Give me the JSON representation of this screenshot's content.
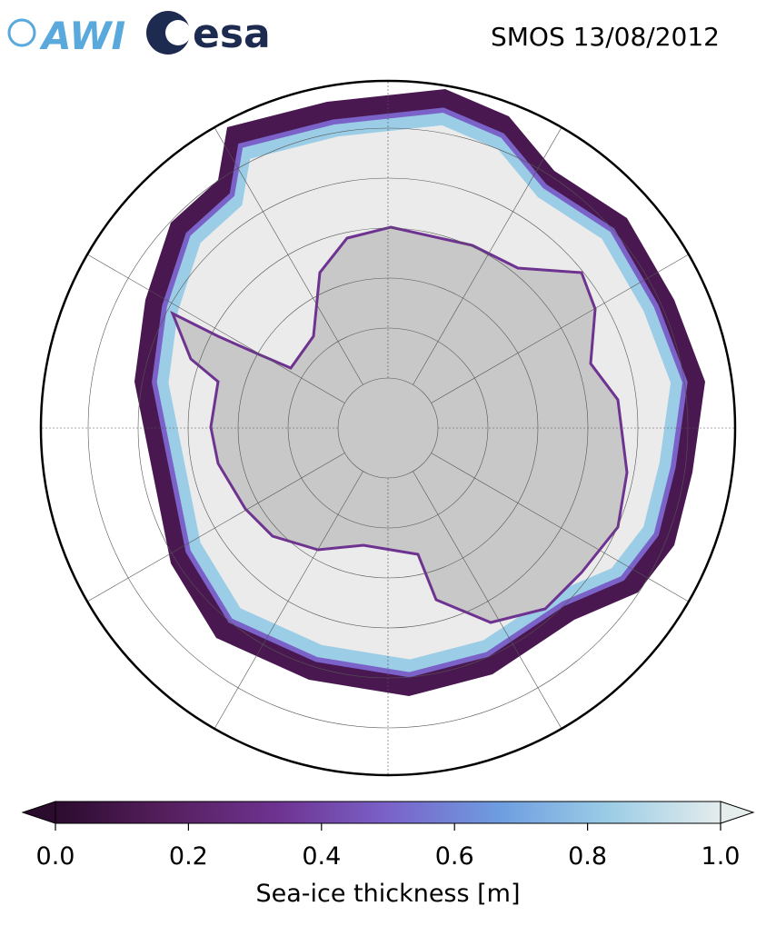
{
  "header": {
    "title": "SMOS 13/08/2012",
    "logos": [
      "AWI",
      "esa"
    ]
  },
  "colorbar": {
    "label": "Sea-ice thickness [m]",
    "lim": [
      0,
      1
    ],
    "ticks": [
      {
        "value": 0,
        "label": "0.0"
      },
      {
        "value": 0.2,
        "label": "0.2"
      },
      {
        "value": 0.4,
        "label": "0.4"
      },
      {
        "value": 0.6,
        "label": "0.6"
      },
      {
        "value": 0.8,
        "label": "0.8"
      },
      {
        "value": 1,
        "label": "1.0"
      }
    ],
    "colors": [
      "#2b0b2e",
      "#561f5e",
      "#6e3390",
      "#7a62c9",
      "#6e9de0",
      "#9ccde6",
      "#e4ecec"
    ]
  }
}
